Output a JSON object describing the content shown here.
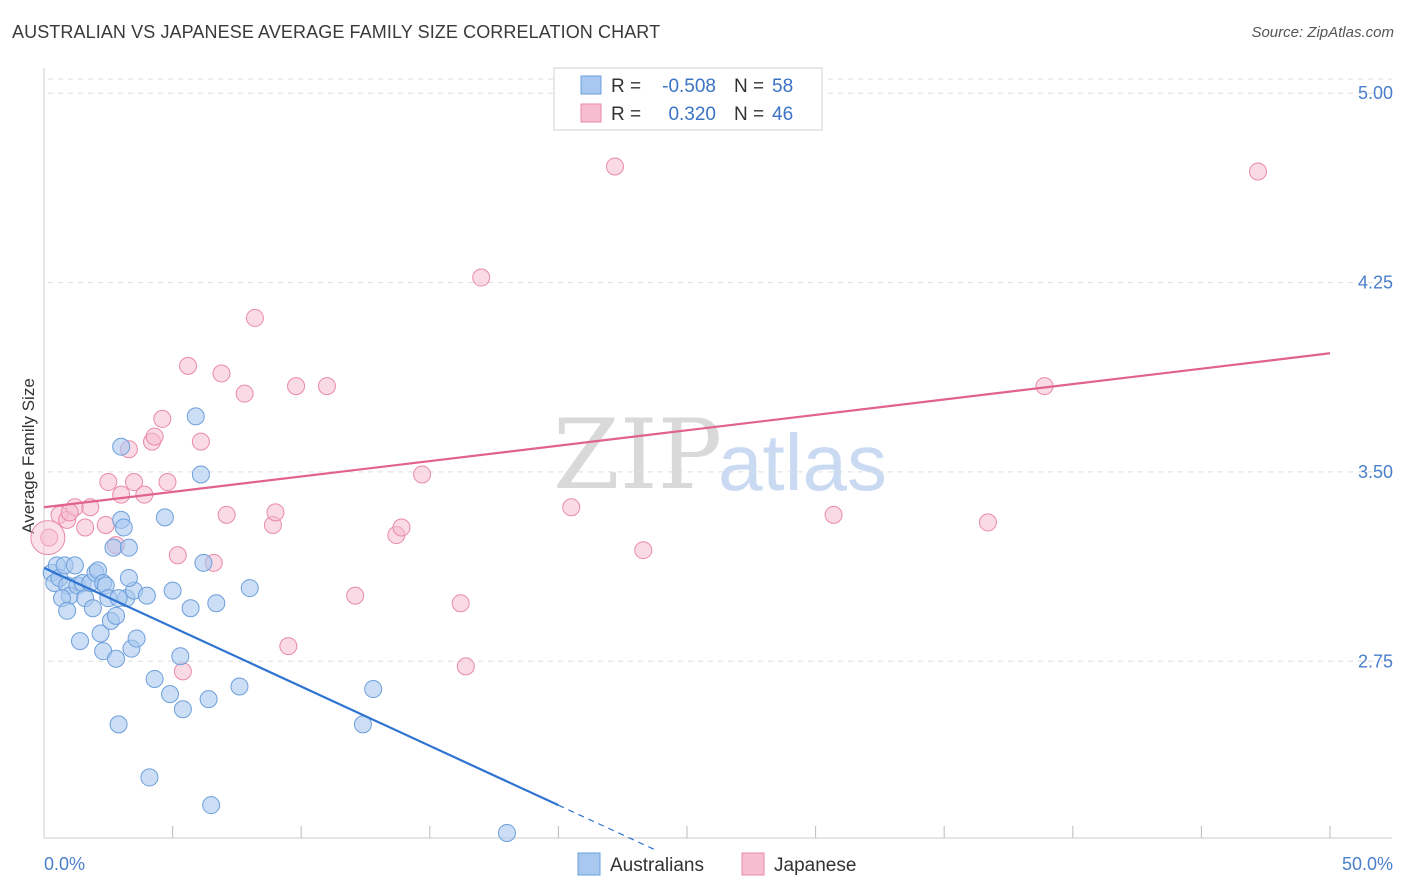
{
  "header": {
    "title": "AUSTRALIAN VS JAPANESE AVERAGE FAMILY SIZE CORRELATION CHART",
    "source": "Source: ZipAtlas.com"
  },
  "watermark": {
    "zip": "ZIP",
    "atlas": "atlas"
  },
  "legend": {
    "rows": [
      {
        "r_label": "R =",
        "r_value": "-0.508",
        "n_label": "N =",
        "n_value": "58"
      },
      {
        "r_label": "R =",
        "r_value": "0.320",
        "n_label": "N =",
        "n_value": "46"
      }
    ]
  },
  "bottom_legend": {
    "items": [
      "Australians",
      "Japanese"
    ]
  },
  "colors": {
    "blue_fill": "#a9c8ef",
    "blue_stroke": "#6d9fdc",
    "blue_line": "#2e74d0",
    "pink_fill": "#f6bcd0",
    "pink_stroke": "#e98aab",
    "pink_line": "#e0628d",
    "tick_text": "#4a7fcb",
    "grid": "#dddddd"
  },
  "chart_data": {
    "type": "scatter",
    "title": "AUSTRALIAN VS JAPANESE AVERAGE FAMILY SIZE CORRELATION CHART",
    "xlabel": "",
    "ylabel": "Average Family Size",
    "xlim": [
      0,
      50
    ],
    "ylim": [
      2.05,
      5.1
    ],
    "x_tick_labels": [
      "0.0%",
      "50.0%"
    ],
    "y_ticks": [
      2.75,
      3.5,
      4.25,
      5.0
    ],
    "y_tick_labels": [
      "2.75",
      "3.50",
      "4.25",
      "5.00"
    ],
    "grid": true,
    "series": [
      {
        "name": "Australians",
        "r": -0.508,
        "n": 58,
        "trend": {
          "x0": 0,
          "y0": 3.12,
          "x1": 20,
          "y1": 2.18,
          "dash_x1": 23.8
        },
        "points": [
          [
            0.3,
            3.1
          ],
          [
            0.5,
            3.13
          ],
          [
            0.4,
            3.06
          ],
          [
            0.6,
            3.08
          ],
          [
            0.8,
            3.13
          ],
          [
            0.9,
            3.05
          ],
          [
            1.0,
            3.01
          ],
          [
            1.2,
            3.13
          ],
          [
            1.3,
            3.05
          ],
          [
            1.5,
            3.06
          ],
          [
            1.6,
            3.0
          ],
          [
            1.8,
            3.06
          ],
          [
            2.0,
            3.1
          ],
          [
            2.1,
            3.11
          ],
          [
            2.3,
            3.06
          ],
          [
            2.2,
            2.86
          ],
          [
            1.9,
            2.96
          ],
          [
            1.4,
            2.83
          ],
          [
            2.4,
            3.05
          ],
          [
            2.5,
            3.0
          ],
          [
            0.7,
            3.0
          ],
          [
            0.9,
            2.95
          ],
          [
            2.3,
            2.79
          ],
          [
            2.6,
            2.91
          ],
          [
            2.8,
            2.76
          ],
          [
            2.7,
            3.2
          ],
          [
            3.0,
            3.31
          ],
          [
            3.1,
            3.28
          ],
          [
            2.8,
            2.93
          ],
          [
            3.2,
            3.0
          ],
          [
            3.5,
            3.03
          ],
          [
            3.3,
            3.08
          ],
          [
            3.4,
            2.8
          ],
          [
            3.6,
            2.84
          ],
          [
            4.0,
            3.01
          ],
          [
            4.3,
            2.68
          ],
          [
            4.7,
            3.32
          ],
          [
            4.9,
            2.62
          ],
          [
            5.0,
            3.03
          ],
          [
            5.3,
            2.77
          ],
          [
            5.4,
            2.56
          ],
          [
            5.7,
            2.96
          ],
          [
            5.9,
            3.72
          ],
          [
            6.1,
            3.49
          ],
          [
            6.2,
            3.14
          ],
          [
            6.4,
            2.6
          ],
          [
            6.7,
            2.98
          ],
          [
            7.6,
            2.65
          ],
          [
            8.0,
            3.04
          ],
          [
            4.1,
            2.29
          ],
          [
            2.9,
            2.5
          ],
          [
            3.0,
            3.6
          ],
          [
            3.3,
            3.2
          ],
          [
            2.9,
            3.0
          ],
          [
            6.5,
            2.18
          ],
          [
            12.4,
            2.5
          ],
          [
            12.8,
            2.64
          ],
          [
            18.0,
            2.07
          ]
        ]
      },
      {
        "name": "Japanese",
        "r": 0.32,
        "n": 46,
        "trend": {
          "x0": 0,
          "y0": 3.36,
          "x1": 50,
          "y1": 3.97
        },
        "points": [
          [
            0.2,
            3.24
          ],
          [
            0.6,
            3.33
          ],
          [
            0.9,
            3.31
          ],
          [
            1.2,
            3.36
          ],
          [
            1.6,
            3.28
          ],
          [
            1.8,
            3.36
          ],
          [
            2.4,
            3.29
          ],
          [
            2.5,
            3.46
          ],
          [
            2.8,
            3.21
          ],
          [
            3.0,
            3.41
          ],
          [
            3.3,
            3.59
          ],
          [
            3.5,
            3.46
          ],
          [
            3.9,
            3.41
          ],
          [
            4.2,
            3.62
          ],
          [
            4.3,
            3.64
          ],
          [
            4.6,
            3.71
          ],
          [
            4.8,
            3.46
          ],
          [
            5.2,
            3.17
          ],
          [
            5.4,
            2.71
          ],
          [
            5.6,
            3.92
          ],
          [
            6.1,
            3.62
          ],
          [
            6.6,
            3.14
          ],
          [
            6.9,
            3.89
          ],
          [
            7.1,
            3.33
          ],
          [
            7.8,
            3.81
          ],
          [
            8.2,
            4.11
          ],
          [
            8.9,
            3.29
          ],
          [
            9.0,
            3.34
          ],
          [
            9.5,
            2.81
          ],
          [
            9.8,
            3.84
          ],
          [
            11.0,
            3.84
          ],
          [
            12.1,
            3.01
          ],
          [
            13.7,
            3.25
          ],
          [
            13.9,
            3.28
          ],
          [
            14.7,
            3.49
          ],
          [
            16.2,
            2.98
          ],
          [
            16.4,
            2.73
          ],
          [
            17.0,
            4.27
          ],
          [
            20.5,
            3.36
          ],
          [
            22.2,
            4.71
          ],
          [
            23.3,
            3.19
          ],
          [
            30.7,
            3.33
          ],
          [
            36.7,
            3.3
          ],
          [
            38.9,
            3.84
          ],
          [
            47.2,
            4.69
          ],
          [
            1.0,
            3.34
          ]
        ]
      }
    ]
  }
}
